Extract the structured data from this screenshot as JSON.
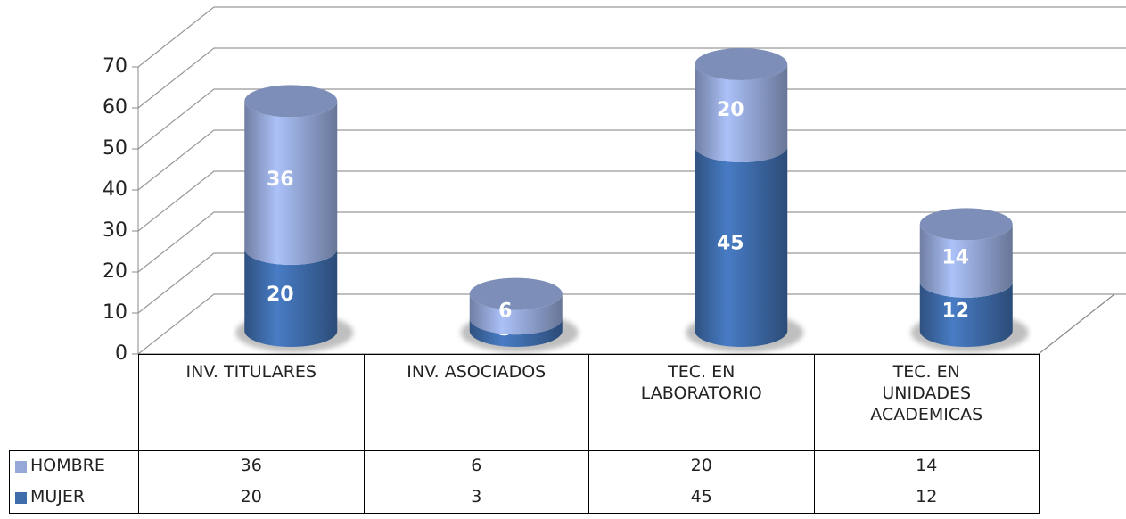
{
  "chart_data": {
    "type": "bar3d_stacked",
    "categories": [
      "INV. TITULARES",
      "INV. ASOCIADOS",
      "TEC. EN LABORATORIO",
      "TEC. EN UNIDADES ACADEMICAS"
    ],
    "series": [
      {
        "name": "MUJER",
        "color": "#3f6cab",
        "values": [
          20,
          3,
          45,
          12
        ]
      },
      {
        "name": "HOMBRE",
        "color": "#95a8d8",
        "values": [
          36,
          6,
          20,
          14
        ]
      }
    ],
    "ylim": [
      0,
      70
    ],
    "yticks": [
      0,
      10,
      20,
      30,
      40,
      50,
      60,
      70
    ],
    "grid": true,
    "legend": "table"
  }
}
